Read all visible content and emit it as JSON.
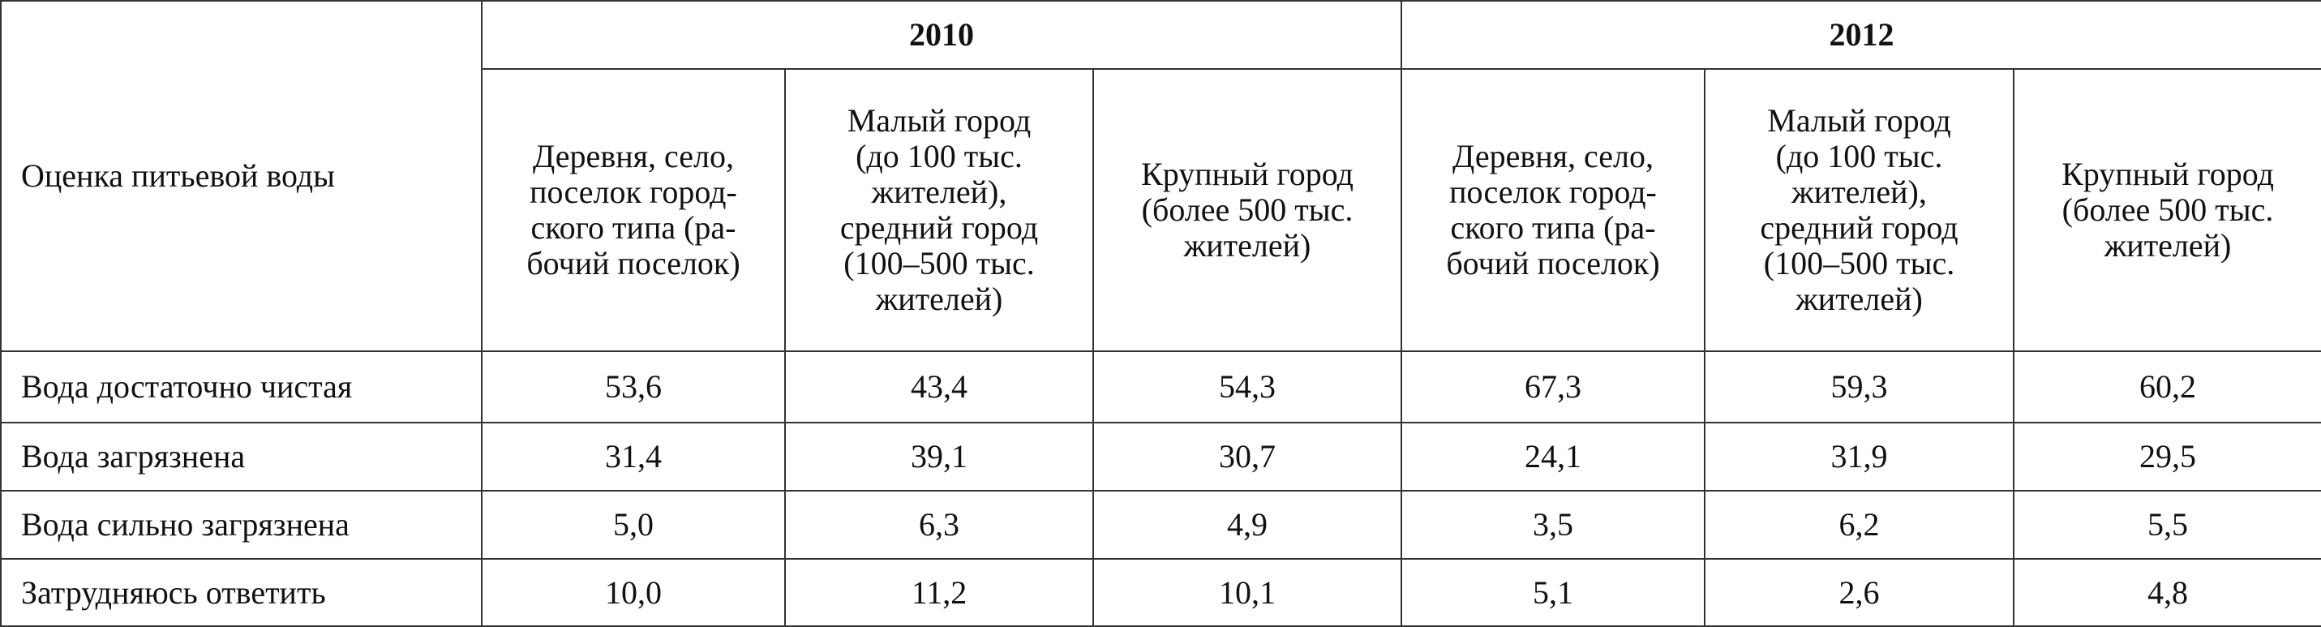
{
  "table": {
    "header": {
      "row_label": "Оценка питьевой воды",
      "groups": [
        {
          "year": "2010",
          "columns": [
            [
              "Деревня, село,",
              "поселок город-",
              "ского типа (ра-",
              "бочий поселок)"
            ],
            [
              "Малый город",
              "(до 100 тыс.",
              "жителей),",
              "средний город",
              "(100–500 тыс.",
              "жителей)"
            ],
            [
              "Крупный город",
              "(более 500 тыс.",
              "жителей)"
            ]
          ]
        },
        {
          "year": "2012",
          "columns": [
            [
              "Деревня, село,",
              "поселок город-",
              "ского типа (ра-",
              "бочий поселок)"
            ],
            [
              "Малый город",
              "(до 100 тыс.",
              "жителей),",
              "средний город",
              "(100–500 тыс.",
              "жителей)"
            ],
            [
              "Крупный город",
              "(более 500 тыс.",
              "жителей)"
            ]
          ]
        }
      ]
    },
    "rows": [
      {
        "label": "Вода достаточно чистая",
        "values": [
          "53,6",
          "43,4",
          "54,3",
          "67,3",
          "59,3",
          "60,2"
        ]
      },
      {
        "label": "Вода загрязнена",
        "values": [
          "31,4",
          "39,1",
          "30,7",
          "24,1",
          "31,9",
          "29,5"
        ]
      },
      {
        "label": "Вода сильно загрязнена",
        "values": [
          "5,0",
          "6,3",
          "4,9",
          "3,5",
          "6,2",
          "5,5"
        ]
      },
      {
        "label": "Затрудняюсь ответить",
        "values": [
          "10,0",
          "11,2",
          "10,1",
          "5,1",
          "2,6",
          "4,8"
        ]
      }
    ]
  }
}
